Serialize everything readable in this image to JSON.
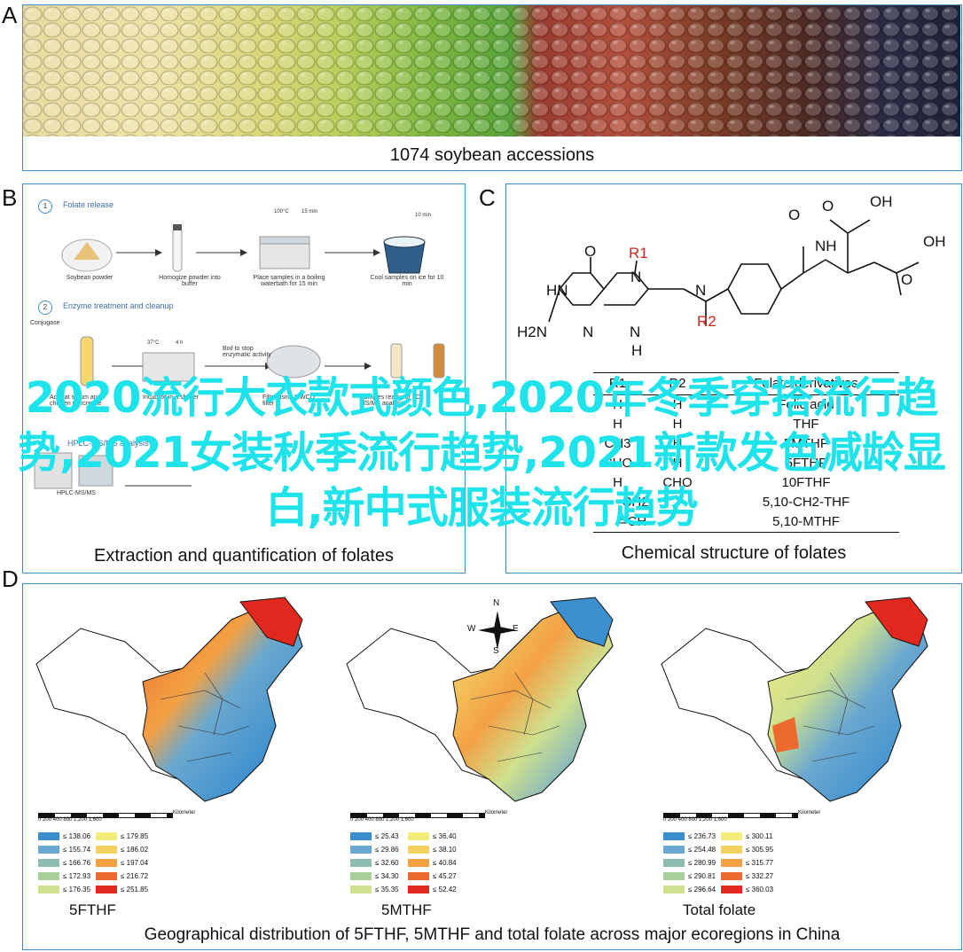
{
  "panels": {
    "a": {
      "label": "A",
      "caption": "1074 soybean accessions"
    },
    "b": {
      "label": "B",
      "caption": "Extraction and quantification of folates",
      "step1": {
        "num": "1",
        "title": "Folate release"
      },
      "step1_items": [
        "Soybean powder",
        "Homogize powder into buffer",
        "Place samples in a boiling waterbath for 15 min",
        "Cool samples on ice for 10 min"
      ],
      "step1_marks": [
        "100°C",
        "15 min",
        "10 min"
      ],
      "step2": {
        "num": "2",
        "title": "Enzyme treatment and cleanup"
      },
      "step2_items": [
        "Conjugase",
        "Add rat serum and chicken pancrease",
        "Incubate in a shaker",
        "Boil to stop enzymatic activity",
        "Filter using MWCO filter",
        "Samples ready for LC-MS/MS analysis"
      ],
      "step2_marks": [
        "37°C",
        "4 h"
      ],
      "step3": {
        "title": "HPLC-MS/MS analysis"
      },
      "step3_items": [
        "HPLC-MS/MS"
      ]
    },
    "c": {
      "label": "C",
      "caption": "Chemical structure of folates",
      "atoms": [
        "O",
        "OH",
        "O",
        "NH",
        "OH",
        "O",
        "R1",
        "N",
        "HN",
        "O",
        "N",
        "R2",
        "H2N",
        "N",
        "N",
        "H"
      ],
      "table": {
        "headers": [
          "R1",
          "R2",
          "Folate derivatives"
        ],
        "rows": [
          [
            "H",
            "H",
            "Folic acid"
          ],
          [
            "H",
            "H",
            "THF"
          ],
          [
            "CH3",
            "H",
            "5MTHF"
          ],
          [
            "CHO",
            "H",
            "5FTHF"
          ],
          [
            "H",
            "CHO",
            "10FTHF"
          ],
          [
            "-CH2-",
            "",
            "5,10-CH2-THF"
          ],
          [
            "=CH-",
            "",
            "5,10-MTHF"
          ]
        ]
      }
    },
    "d": {
      "label": "D",
      "caption": "Geographical distribution of 5FTHF, 5MTHF and total folate across major ecoregions in China",
      "compass": [
        "N",
        "E",
        "S",
        "W"
      ],
      "maps": [
        {
          "name": "5FTHF",
          "scale": [
            "0",
            "200",
            "400",
            "800",
            "1,200",
            "1,600"
          ],
          "scale_unit": "Kilometer",
          "legend": [
            "≤ 138.06",
            "≤ 155.74",
            "≤ 166.76",
            "≤ 172.93",
            "≤ 176.35",
            "≤ 179.85",
            "≤ 186.02",
            "≤ 197.04",
            "≤ 216.72",
            "≤ 251.85"
          ]
        },
        {
          "name": "5MTHF",
          "scale": [
            "0",
            "200",
            "400",
            "800",
            "1,200",
            "1,600"
          ],
          "scale_unit": "Kilometer",
          "legend": [
            "≤ 25.43",
            "≤ 29.86",
            "≤ 32.60",
            "≤ 34.30",
            "≤ 35.35",
            "≤ 36.40",
            "≤ 38.10",
            "≤ 40.84",
            "≤ 45.27",
            "≤ 52.42"
          ]
        },
        {
          "name": "Total folate",
          "scale": [
            "0",
            "200",
            "400",
            "800",
            "1,200",
            "1,600"
          ],
          "scale_unit": "Kilometer",
          "legend": [
            "≤ 236.73",
            "≤ 254.48",
            "≤ 280.99",
            "≤ 290.81",
            "≤ 296.64",
            "≤ 300.11",
            "≤ 305.95",
            "≤ 315.77",
            "≤ 332.27",
            "≤ 360.03"
          ]
        }
      ],
      "legend_colors": [
        "#3b8fcf",
        "#6aa8cf",
        "#8fbcb0",
        "#a9cf9a",
        "#cfe08e",
        "#f3ec7a",
        "#f6d061",
        "#f3a144",
        "#ec6a2e",
        "#e0281f"
      ]
    }
  },
  "overlay_text": "2020流行大衣款式颜色,2020年冬季穿搭流行趋势,2021女装秋季流行趋势,2021新款发色减龄显白,新中式服装流行趋势"
}
